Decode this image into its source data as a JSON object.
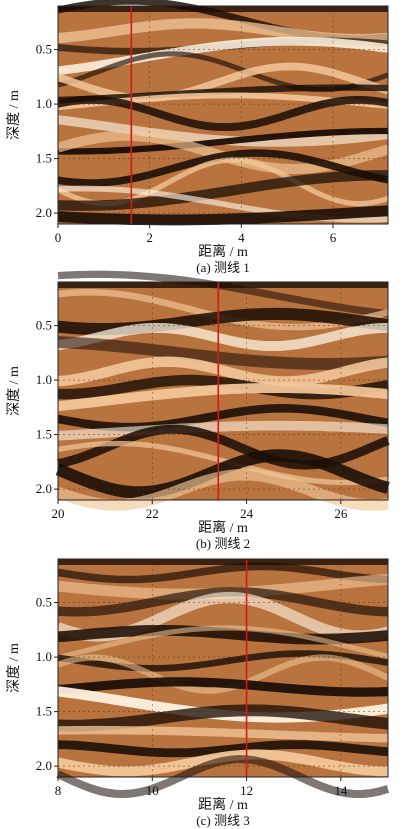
{
  "chart_data": [
    {
      "type": "heatmap",
      "panel": "(a)",
      "caption": "(a) 测线 1",
      "xlabel": "距离 / m",
      "ylabel": "深度 / m",
      "xlim": [
        0,
        7.2
      ],
      "ylim": [
        2.1,
        0.1
      ],
      "x_ticks": [
        0,
        2,
        4,
        6
      ],
      "y_ticks": [
        0.5,
        1.0,
        1.5,
        2.0
      ],
      "y_tick_labels": [
        "0.5",
        "1.0",
        "1.5",
        "2.0"
      ],
      "marker_line_x": 1.6,
      "marker_color": "#d11a1a",
      "colormap": [
        "#1a0d05",
        "#b8733f",
        "#f3c79a",
        "#fff4e3"
      ],
      "grid": true
    },
    {
      "type": "heatmap",
      "panel": "(b)",
      "caption": "(b) 测线 2",
      "xlabel": "距离 / m",
      "ylabel": "深度 / m",
      "xlim": [
        20,
        27
      ],
      "ylim": [
        2.1,
        0.1
      ],
      "x_ticks": [
        20,
        22,
        24,
        26
      ],
      "y_ticks": [
        0.5,
        1.0,
        1.5,
        2.0
      ],
      "y_tick_labels": [
        "0.5",
        "1.0",
        "1.5",
        "2.0"
      ],
      "marker_line_x": 23.4,
      "marker_color": "#d11a1a",
      "colormap": [
        "#1a0d05",
        "#b8733f",
        "#f3c79a",
        "#fff4e3"
      ],
      "grid": true
    },
    {
      "type": "heatmap",
      "panel": "(c)",
      "caption": "(c) 测线 3",
      "xlabel": "距离 / m",
      "ylabel": "深度 / m",
      "xlim": [
        8,
        15
      ],
      "ylim": [
        2.1,
        0.1
      ],
      "x_ticks": [
        8,
        10,
        12,
        14
      ],
      "y_ticks": [
        0.5,
        1.0,
        1.5,
        2.0
      ],
      "y_tick_labels": [
        "0.5",
        "1.0",
        "1.5",
        "2.0"
      ],
      "marker_line_x": 12.0,
      "marker_color": "#d11a1a",
      "colormap": [
        "#1a0d05",
        "#b8733f",
        "#f3c79a",
        "#fff4e3"
      ],
      "grid": true
    }
  ]
}
